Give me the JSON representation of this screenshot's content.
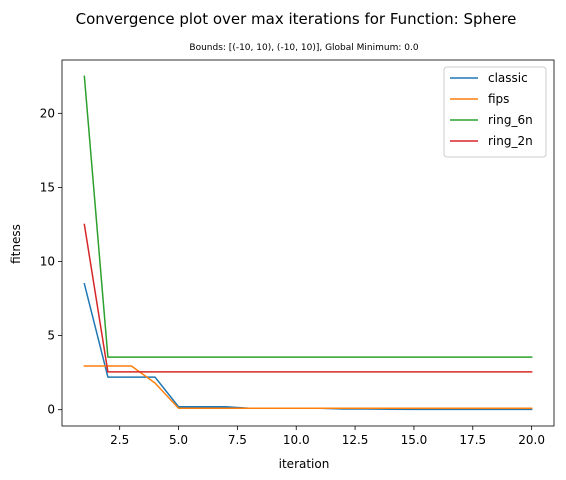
{
  "chart_data": {
    "type": "line",
    "title": "Convergence plot over max iterations for Function: Sphere",
    "subtitle": "Bounds: [(-10, 10), (-10, 10)], Global Minimum: 0.0",
    "xlabel": "iteration",
    "ylabel": "fitness",
    "xlim": [
      0.05,
      20.95
    ],
    "ylim": [
      -1.1,
      23.6
    ],
    "xticks": [
      2.5,
      5.0,
      7.5,
      10.0,
      12.5,
      15.0,
      17.5,
      20.0
    ],
    "xtick_labels": [
      "2.5",
      "5.0",
      "7.5",
      "10.0",
      "12.5",
      "15.0",
      "17.5",
      "20.0"
    ],
    "yticks": [
      0,
      5,
      10,
      15,
      20
    ],
    "ytick_labels": [
      "0",
      "5",
      "10",
      "15",
      "20"
    ],
    "grid": false,
    "legend_position": "top-right",
    "x": [
      1,
      2,
      3,
      4,
      5,
      6,
      7,
      8,
      9,
      10,
      11,
      12,
      13,
      14,
      15,
      16,
      17,
      18,
      19,
      20
    ],
    "series": [
      {
        "name": "classic",
        "color": "#1f77b4",
        "values": [
          8.5,
          2.2,
          2.2,
          2.2,
          0.2,
          0.2,
          0.2,
          0.1,
          0.1,
          0.1,
          0.1,
          0.05,
          0.05,
          0.03,
          0.02,
          0.02,
          0.02,
          0.02,
          0.02,
          0.02
        ]
      },
      {
        "name": "fips",
        "color": "#ff7f0e",
        "values": [
          2.95,
          2.95,
          2.95,
          1.8,
          0.1,
          0.1,
          0.1,
          0.1,
          0.1,
          0.1,
          0.1,
          0.1,
          0.1,
          0.1,
          0.1,
          0.1,
          0.1,
          0.1,
          0.1,
          0.1
        ]
      },
      {
        "name": "ring_6n",
        "color": "#2ca02c",
        "values": [
          22.5,
          3.55,
          3.55,
          3.55,
          3.55,
          3.55,
          3.55,
          3.55,
          3.55,
          3.55,
          3.55,
          3.55,
          3.55,
          3.55,
          3.55,
          3.55,
          3.55,
          3.55,
          3.55,
          3.55
        ]
      },
      {
        "name": "ring_2n",
        "color": "#d62728",
        "values": [
          12.5,
          2.55,
          2.55,
          2.55,
          2.55,
          2.55,
          2.55,
          2.55,
          2.55,
          2.55,
          2.55,
          2.55,
          2.55,
          2.55,
          2.55,
          2.55,
          2.55,
          2.55,
          2.55,
          2.55
        ]
      }
    ]
  }
}
